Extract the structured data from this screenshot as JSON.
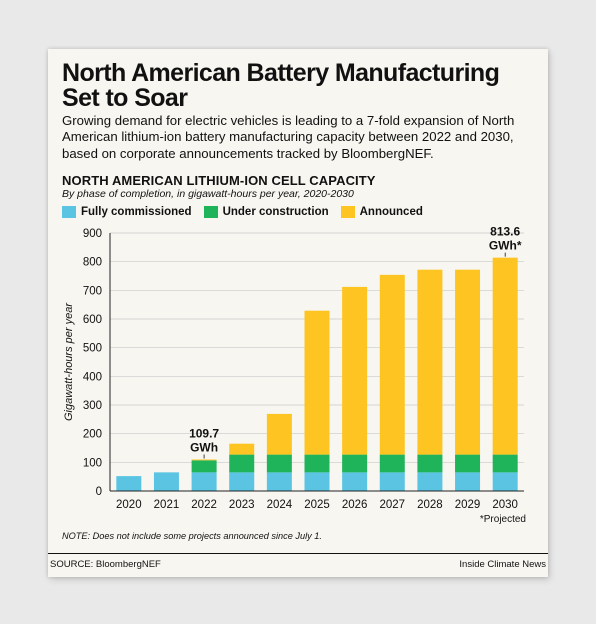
{
  "headline": "North American Battery Manufacturing Set to Soar",
  "dek": "Growing demand for electric vehicles is leading to a 7-fold expansion of North American lithium-ion battery manufacturing capacity between 2022 and 2030, based on corporate announcements tracked by BloombergNEF.",
  "chart_title": "NORTH AMERICAN LITHIUM-ION CELL CAPACITY",
  "chart_subtitle": "By phase of completion, in gigawatt-hours per year, 2020-2030",
  "note": "NOTE: Does not include some projects announced since July 1.",
  "source": "SOURCE: BloombergNEF",
  "credit": "Inside Climate News",
  "colors": {
    "fully_commissioned": "#5bc4e3",
    "under_construction": "#1fb45a",
    "announced": "#fec522"
  },
  "chart_data": {
    "type": "bar",
    "stacked": true,
    "categories": [
      "2020",
      "2021",
      "2022",
      "2023",
      "2024",
      "2025",
      "2026",
      "2027",
      "2028",
      "2029",
      "2030"
    ],
    "series": [
      {
        "name": "Fully commissioned",
        "color": "#5bc4e3",
        "values": [
          52,
          65,
          65,
          65,
          65,
          65,
          65,
          65,
          65,
          65,
          65
        ]
      },
      {
        "name": "Under construction",
        "color": "#1fb45a",
        "values": [
          0,
          0,
          42,
          62,
          62,
          62,
          62,
          62,
          62,
          62,
          62
        ]
      },
      {
        "name": "Announced",
        "color": "#fec522",
        "values": [
          0,
          0,
          3,
          38,
          142,
          502,
          585,
          627,
          645,
          645,
          687
        ]
      }
    ],
    "ylabel": "Gigawatt-hours per year",
    "ylim": [
      0,
      900
    ],
    "yticks": [
      0,
      100,
      200,
      300,
      400,
      500,
      600,
      700,
      800,
      900
    ],
    "grid": true,
    "legend": "top-left",
    "annotations": [
      {
        "category": "2022",
        "lines": [
          "109.7",
          "GWh"
        ]
      },
      {
        "category": "2030",
        "lines": [
          "813.6",
          "GWh*"
        ]
      }
    ],
    "footnote": "*Projected"
  }
}
